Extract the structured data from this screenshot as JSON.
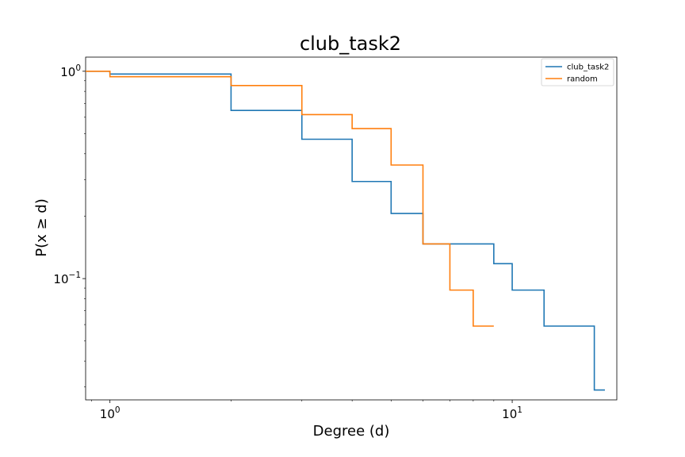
{
  "chart_data": {
    "type": "line",
    "step": "post",
    "title": "club_task2",
    "xlabel": "Degree (d)",
    "ylabel": "P(x ≥ d)",
    "xscale": "log",
    "yscale": "log",
    "xlim": [
      0.87,
      18.2
    ],
    "ylim": [
      0.026,
      1.17
    ],
    "grid": false,
    "legend_loc": "upper right",
    "xticks": [
      {
        "base": "10",
        "exp": "0",
        "value": 1
      },
      {
        "base": "10",
        "exp": "1",
        "value": 10
      }
    ],
    "yticks": [
      {
        "base": "10",
        "exp": "0",
        "value": 1
      },
      {
        "base": "10",
        "exp": "−1",
        "value": 0.1
      }
    ],
    "series": [
      {
        "name": "club_task2",
        "color": "#1f77b4",
        "x": [
          1,
          2,
          3,
          4,
          5,
          6,
          9,
          10,
          12,
          16,
          17
        ],
        "y": [
          0.97,
          0.647,
          0.47,
          0.294,
          0.206,
          0.147,
          0.118,
          0.088,
          0.059,
          0.029,
          0.029
        ]
      },
      {
        "name": "random",
        "color": "#ff7f0e",
        "x": [
          1,
          2,
          3,
          4,
          5,
          6,
          7,
          8,
          9
        ],
        "y": [
          0.941,
          0.853,
          0.618,
          0.529,
          0.353,
          0.147,
          0.088,
          0.059,
          0.059
        ]
      }
    ]
  }
}
